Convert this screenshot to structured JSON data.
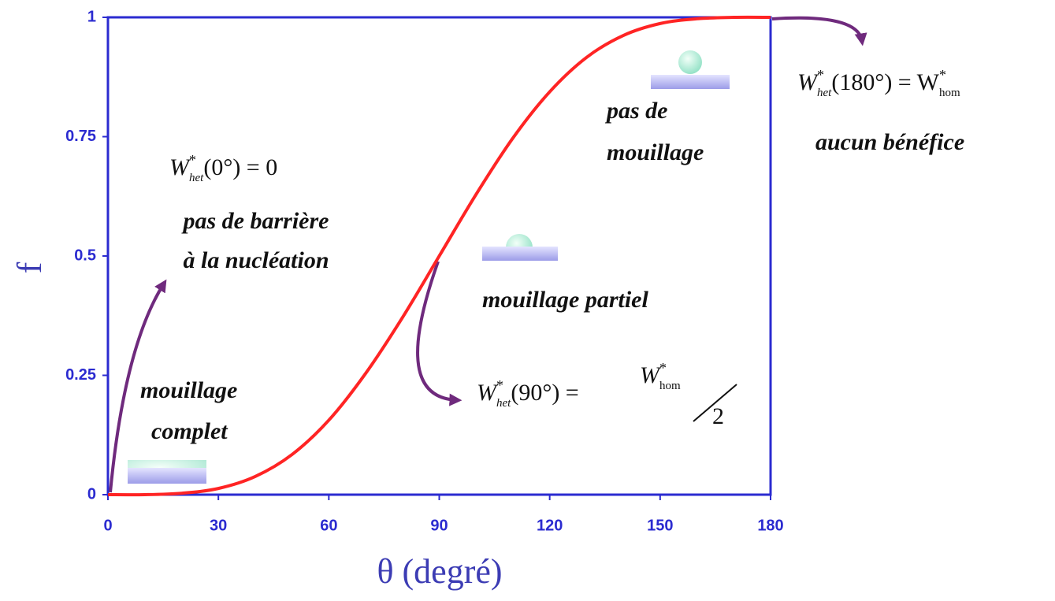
{
  "chart_data": {
    "type": "line",
    "x": [
      0,
      10,
      20,
      30,
      40,
      50,
      60,
      70,
      80,
      90,
      100,
      110,
      120,
      130,
      140,
      150,
      160,
      170,
      180
    ],
    "values": [
      0,
      0.0,
      0.003,
      0.013,
      0.038,
      0.084,
      0.156,
      0.254,
      0.371,
      0.5,
      0.629,
      0.747,
      0.844,
      0.916,
      0.962,
      0.987,
      0.997,
      1.0,
      1
    ],
    "color": "#ff2424",
    "xlabel": "θ (degré)",
    "ylabel": "f",
    "xlim": [
      0,
      180
    ],
    "ylim": [
      0,
      1
    ],
    "xticks": [
      0,
      30,
      60,
      90,
      120,
      150,
      180
    ],
    "yticks": [
      0,
      0.25,
      0.5,
      0.75,
      1
    ],
    "annotations": {
      "eq_0": {
        "main": "W",
        "sup": "*",
        "sub": "het",
        "rest": "(0°) = 0"
      },
      "barrier": [
        "pas de barrière",
        "à la nucléation"
      ],
      "complete": [
        "mouillage",
        "complet"
      ],
      "none": [
        "pas de",
        "mouillage"
      ],
      "partial": "mouillage partiel",
      "eq_90": {
        "main": "W",
        "sup": "*",
        "sub": "het",
        "rest": "(90°) =",
        "main2": "W",
        "sup2": "*",
        "sub2": "hom",
        "den": "2"
      },
      "eq_180": {
        "main": "W",
        "sup": "*",
        "sub": "het",
        "rest": "(180°) = W",
        "sup2": "*",
        "sub2": "hom"
      },
      "benefit": "aucun bénéfice"
    }
  }
}
